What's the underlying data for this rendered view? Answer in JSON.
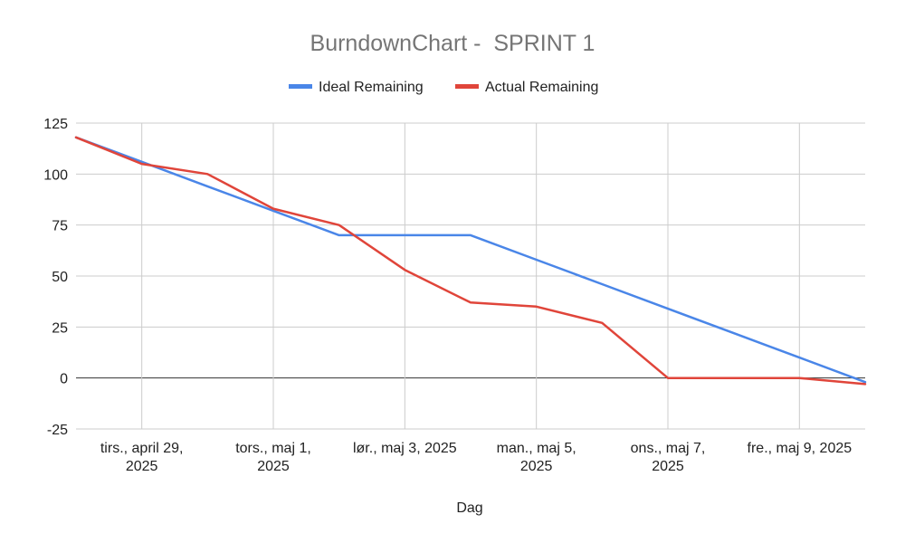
{
  "chart_data": {
    "type": "line",
    "title": "BurndownChart -  SPRINT 1",
    "xlabel": "Dag",
    "ylabel": "",
    "ylim": [
      -25,
      125
    ],
    "yticks": [
      125,
      100,
      75,
      50,
      25,
      0,
      -25
    ],
    "grid": true,
    "legend_position": "top",
    "x": [
      "2025-04-28",
      "2025-04-29",
      "2025-04-30",
      "2025-05-01",
      "2025-05-02",
      "2025-05-03",
      "2025-05-04",
      "2025-05-05",
      "2025-05-06",
      "2025-05-07",
      "2025-05-08",
      "2025-05-09",
      "2025-05-10"
    ],
    "x_tick_labels": [
      {
        "date": "2025-04-29",
        "lines": [
          "tirs., april 29,",
          "2025"
        ]
      },
      {
        "date": "2025-05-01",
        "lines": [
          "tors., maj 1,",
          "2025"
        ]
      },
      {
        "date": "2025-05-03",
        "lines": [
          "lør., maj 3, 2025"
        ]
      },
      {
        "date": "2025-05-05",
        "lines": [
          "man., maj 5,",
          "2025"
        ]
      },
      {
        "date": "2025-05-07",
        "lines": [
          "ons., maj 7,",
          "2025"
        ]
      },
      {
        "date": "2025-05-09",
        "lines": [
          "fre., maj 9, 2025"
        ]
      }
    ],
    "series": [
      {
        "name": "Ideal Remaining",
        "color": "#4a86e8",
        "values": [
          118,
          106,
          94,
          82,
          70,
          70,
          70,
          58,
          46,
          34,
          22,
          10,
          -2
        ]
      },
      {
        "name": "Actual Remaining",
        "color": "#e0453a",
        "values": [
          118,
          105,
          100,
          83,
          75,
          53,
          37,
          35,
          27,
          0,
          0,
          0,
          -3
        ]
      }
    ]
  }
}
